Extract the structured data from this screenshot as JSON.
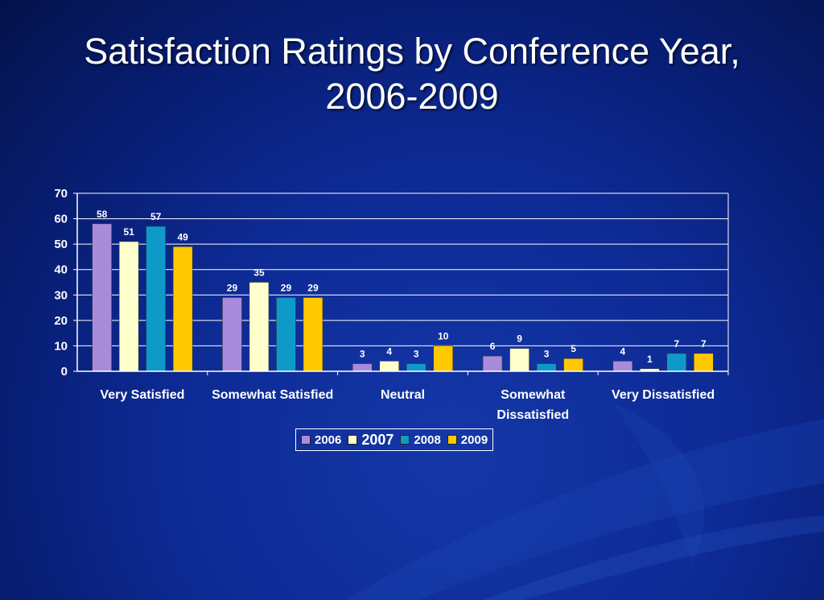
{
  "title": {
    "line1": "Satisfaction Ratings by Conference Year,",
    "line2": "2006-2009"
  },
  "chart_data": {
    "type": "bar",
    "title": "Satisfaction Ratings by Conference Year, 2006-2009",
    "categories": [
      [
        "Very Satisfied"
      ],
      [
        "Somewhat Satisfied"
      ],
      [
        "Neutral"
      ],
      [
        "Somewhat",
        "Dissatisfied"
      ],
      [
        "Very Dissatisfied"
      ]
    ],
    "series": [
      {
        "name": "2006",
        "color": "#a98bdc",
        "values": [
          58,
          29,
          3,
          6,
          4
        ]
      },
      {
        "name": "2007",
        "color": "#ffffcc",
        "values": [
          51,
          35,
          4,
          9,
          1
        ]
      },
      {
        "name": "2008",
        "color": "#0e9ac8",
        "values": [
          57,
          29,
          3,
          3,
          7
        ]
      },
      {
        "name": "2009",
        "color": "#ffc800",
        "values": [
          49,
          29,
          10,
          5,
          7
        ]
      }
    ],
    "yticks": [
      "0",
      "10",
      "20",
      "30",
      "40",
      "50",
      "60",
      "70"
    ],
    "ylim": [
      0,
      70
    ],
    "grid": true,
    "legend_position": "bottom",
    "xlabel": "",
    "ylabel": ""
  }
}
